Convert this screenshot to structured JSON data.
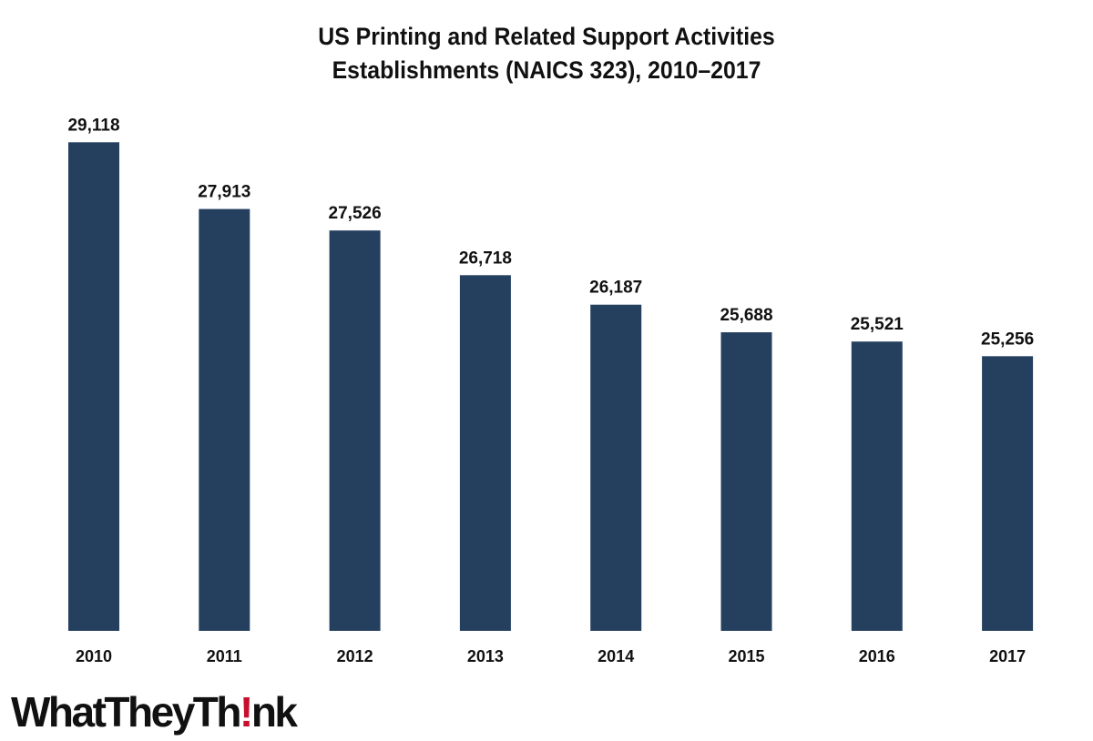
{
  "chart_data": {
    "type": "bar",
    "title_lines": [
      "US Printing and Related Support Activities",
      "Establishments (NAICS 323), 2010–2017"
    ],
    "categories": [
      "2010",
      "2011",
      "2012",
      "2013",
      "2014",
      "2015",
      "2016",
      "2017"
    ],
    "values": [
      29118,
      27913,
      27526,
      26718,
      26187,
      25688,
      25521,
      25256
    ],
    "value_labels": [
      "29,118",
      "27,913",
      "27,526",
      "26,718",
      "26,187",
      "25,688",
      "25,521",
      "25,256"
    ],
    "xlabel": "",
    "ylabel": "",
    "ylim": [
      20300,
      29500
    ],
    "grid": false,
    "legend": "none",
    "bar_color": "#253f5f"
  },
  "logo": {
    "text_before": "WhatTheyTh",
    "text_mark": "!",
    "text_after": "nk",
    "mark_color": "#c8102e"
  }
}
